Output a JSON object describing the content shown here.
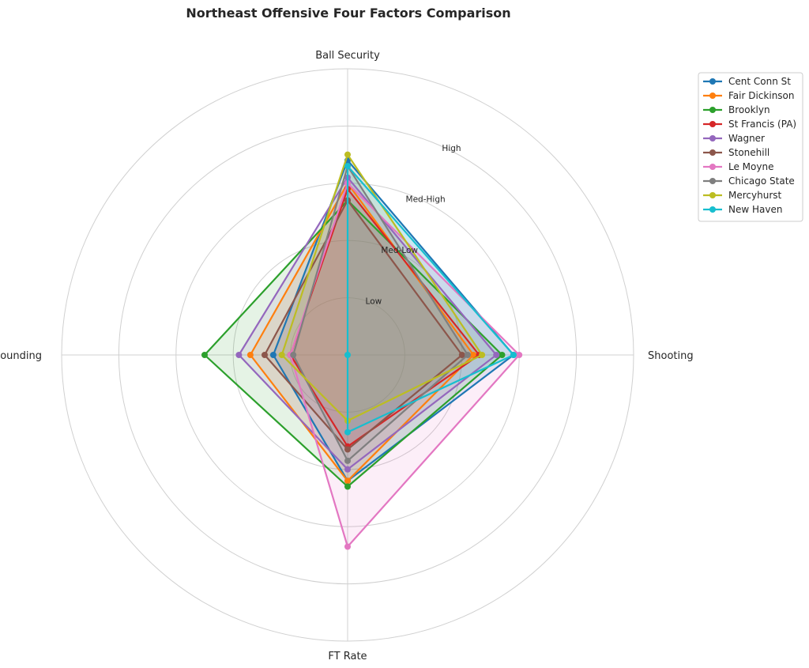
{
  "chart_data": {
    "type": "radar",
    "title": "Northeast Offensive Four Factors Comparison",
    "axes": [
      "Ball Security",
      "Shooting",
      "FT Rate",
      "Off Rebounding"
    ],
    "ring_labels": [
      "Low",
      "Med-Low",
      "Med-High",
      "High"
    ],
    "range": [
      0,
      5
    ],
    "grid": true,
    "legend_placement": "upper right, outside plot",
    "series": [
      {
        "name": "Cent Conn St",
        "color": "#1f77b4",
        "values": [
          3.4,
          2.9,
          2.2,
          1.3
        ]
      },
      {
        "name": "Fair Dickinson",
        "color": "#ff7f0e",
        "values": [
          3.0,
          2.2,
          2.2,
          1.7
        ]
      },
      {
        "name": "Brooklyn",
        "color": "#2ca02c",
        "values": [
          2.7,
          2.7,
          2.3,
          2.5
        ]
      },
      {
        "name": "St Francis (PA)",
        "color": "#d62728",
        "values": [
          2.9,
          2.3,
          1.6,
          1.0
        ]
      },
      {
        "name": "Wagner",
        "color": "#9467bd",
        "values": [
          3.1,
          2.6,
          2.0,
          1.9
        ]
      },
      {
        "name": "Stonehill",
        "color": "#8c564b",
        "values": [
          2.7,
          2.0,
          1.65,
          1.45
        ]
      },
      {
        "name": "Le Moyne",
        "color": "#e377c2",
        "values": [
          3.0,
          3.0,
          3.35,
          1.0
        ]
      },
      {
        "name": "Chicago State",
        "color": "#7f7f7f",
        "values": [
          3.3,
          2.1,
          1.85,
          0.95
        ]
      },
      {
        "name": "Mercyhurst",
        "color": "#bcbd22",
        "values": [
          3.5,
          2.35,
          1.15,
          1.15
        ]
      },
      {
        "name": "New Haven",
        "color": "#17becf",
        "values": [
          3.3,
          2.9,
          1.35,
          0.0
        ]
      }
    ]
  }
}
